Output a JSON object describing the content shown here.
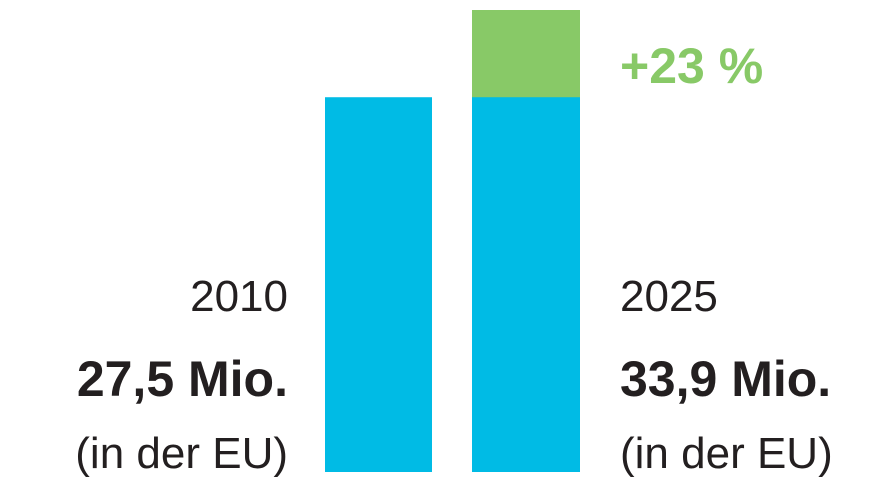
{
  "chart_data": {
    "type": "bar",
    "categories": [
      "2010",
      "2025"
    ],
    "values": [
      27.5,
      33.9
    ],
    "value_labels": [
      "27,5 Mio.",
      "33,9 Mio."
    ],
    "notes": [
      "(in der EU)",
      "(in der EU)"
    ],
    "color": "#00bbe5",
    "increase_color": "#88c967",
    "annotation": "+23 %",
    "ylim": [
      0,
      33.9
    ]
  }
}
